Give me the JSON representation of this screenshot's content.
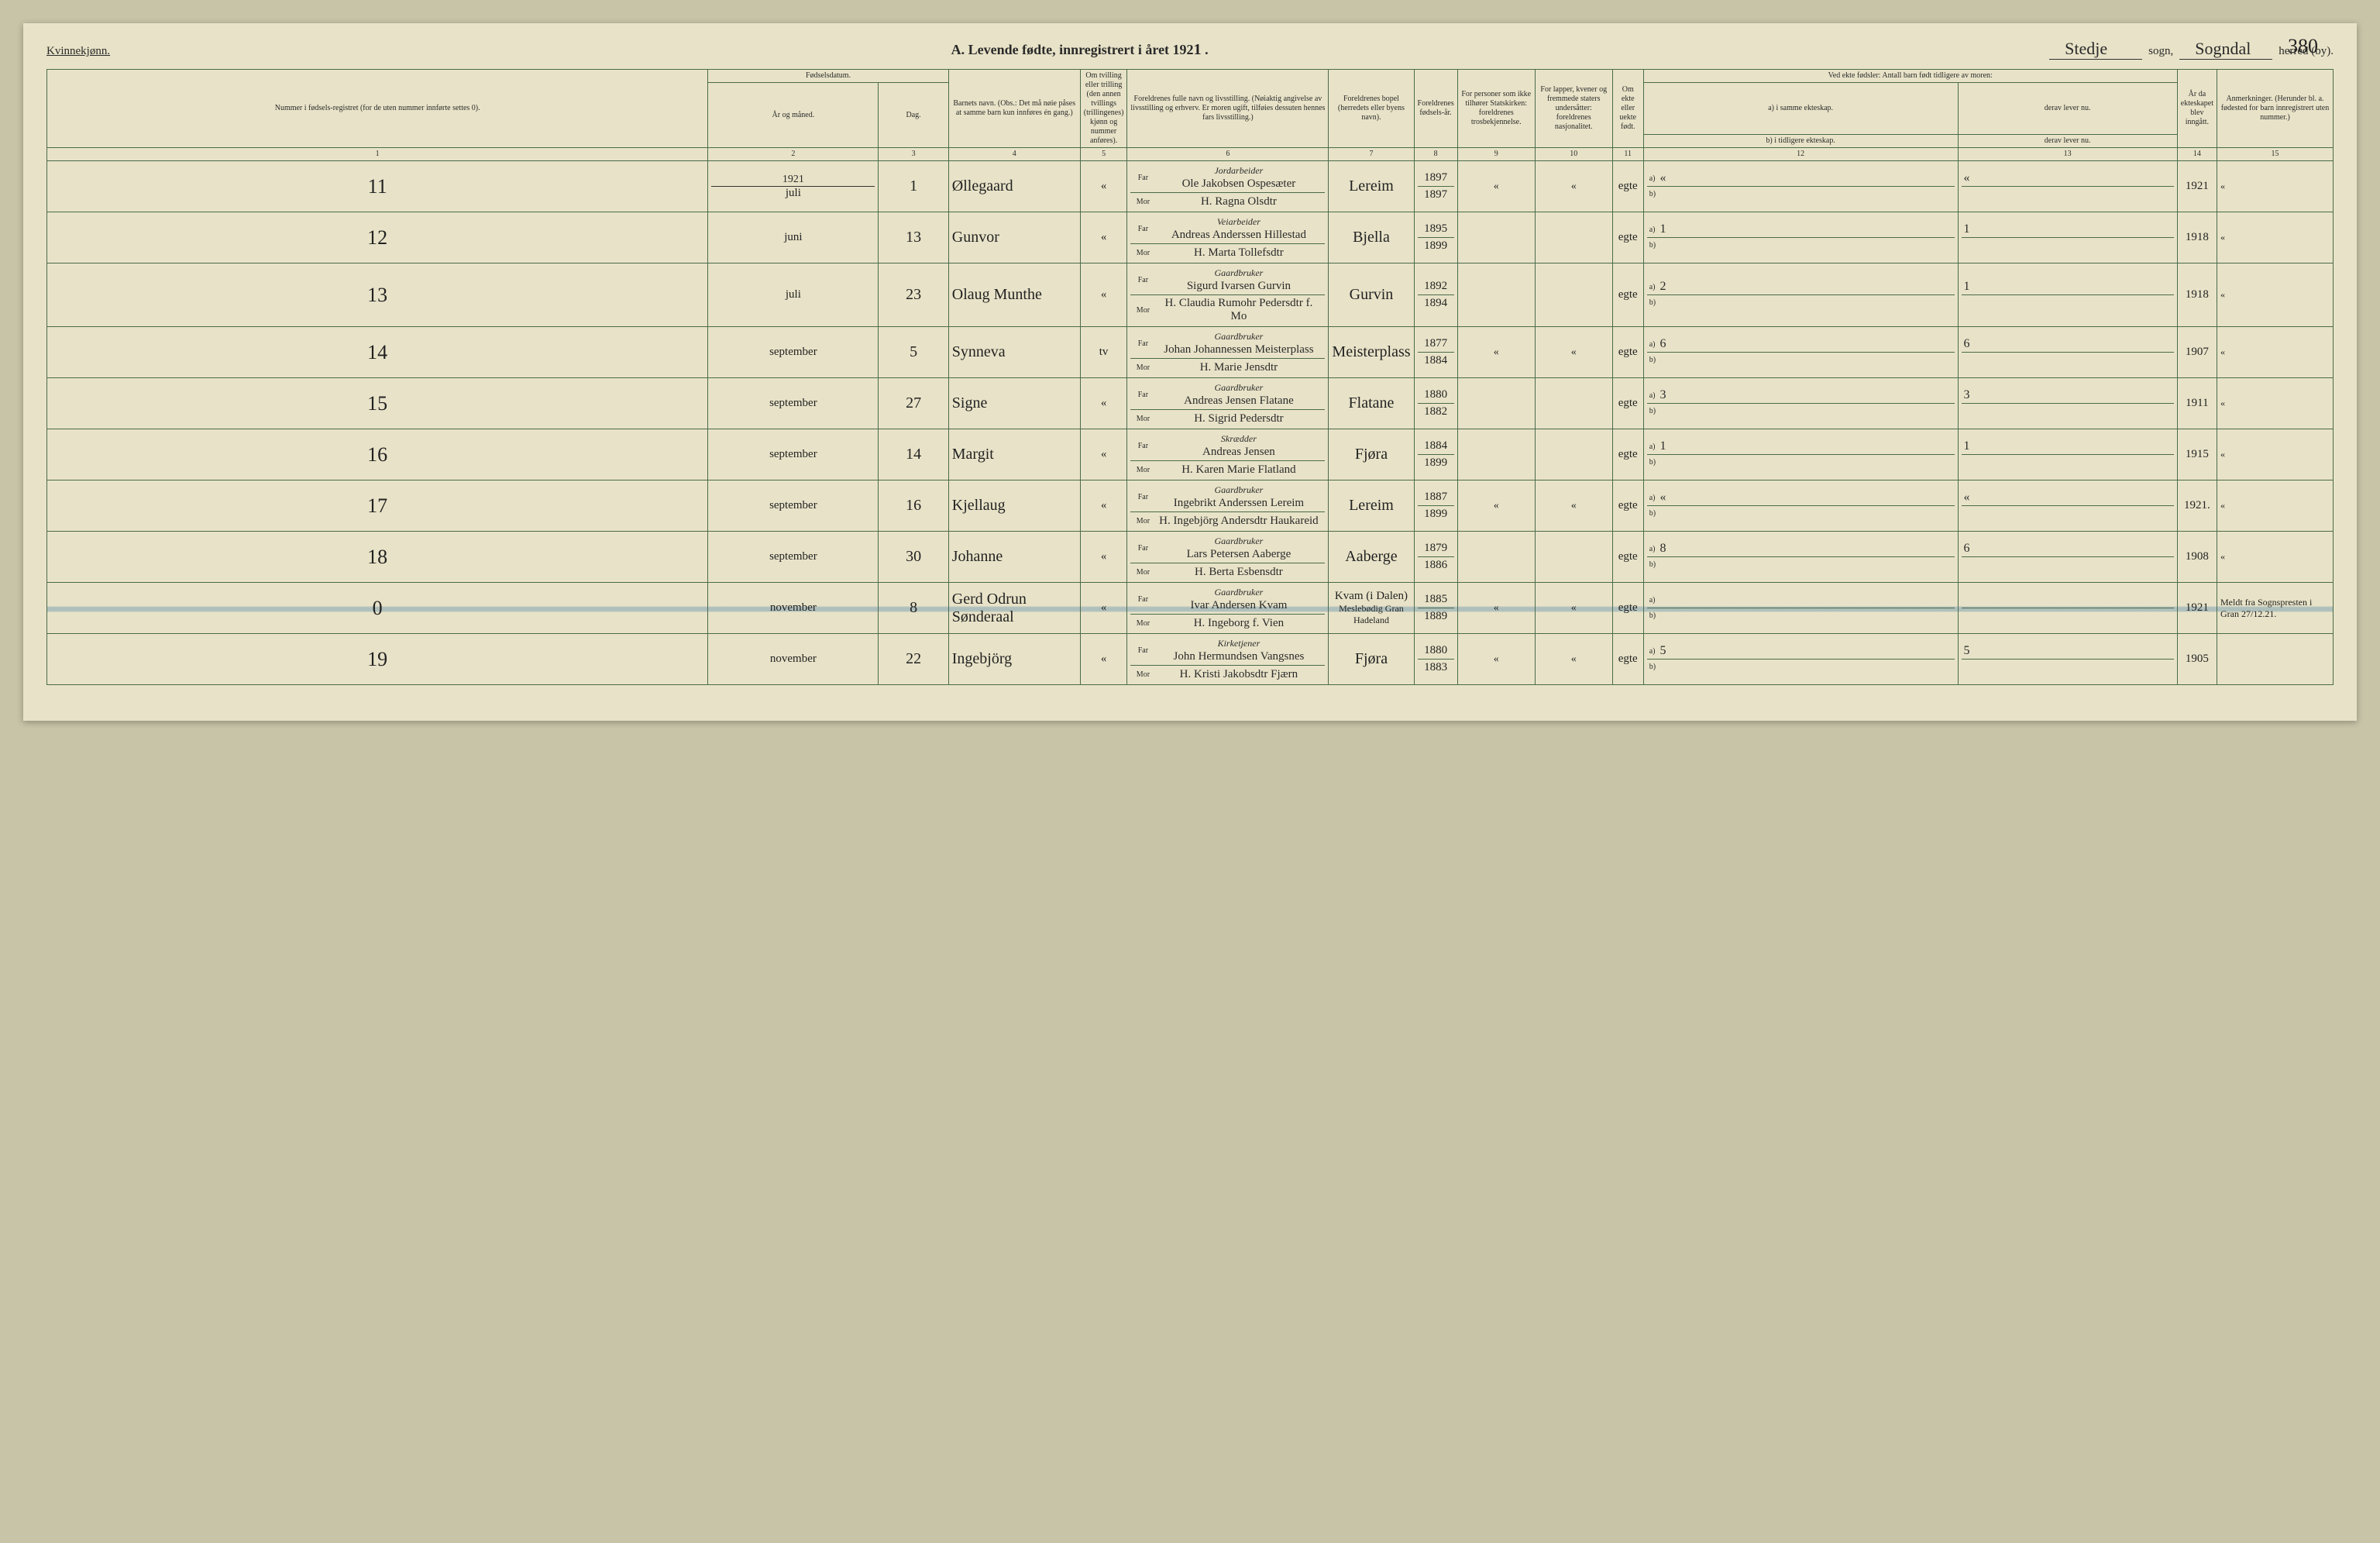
{
  "page_number": "380",
  "header": {
    "gender": "Kvinnekjønn.",
    "title_prefix": "A.  Levende  fødte,  innregistrert  i  året  192",
    "year_suffix": "1",
    "sogn_label": "sogn,",
    "sogn_value": "Stedje",
    "herred_label": "herred (by).",
    "herred_value": "Sogndal"
  },
  "columns": {
    "c1": "Nummer i fødsels-registret (for de uten nummer innførte settes 0).",
    "c2": "Fødselsdatum.",
    "c2a": "År og måned.",
    "c2b": "Dag.",
    "c3": "Barnets navn.\n(Obs.: Det må nøie påses at samme barn kun innføres én gang.)",
    "c4": "Om tvilling eller trilling (den annen tvillings (trillingenes) kjønn og nummer anføres).",
    "c5": "Foreldrenes fulle navn og livsstilling.\n(Nøiaktig angivelse av livsstilling og erhverv. Er moren ugift, tilføies dessuten hennes fars livsstilling.)",
    "c6": "Foreldrenes bopel (herredets eller byens navn).",
    "c7": "Foreldrenes fødsels-år.",
    "c8": "For personer som ikke tilhører Statskirken: foreldrenes trosbekjennelse.",
    "c9": "For lapper, kvener og fremmede staters undersåtter: foreldrenes nasjonalitet.",
    "c10": "Om ekte eller uekte født.",
    "c11": "Ved ekte fødsler: Antall barn født tidligere av moren:",
    "c11a": "a) i samme ekteskap.",
    "c11b": "b) i tidligere ekteskap.",
    "c11c": "derav lever nu.",
    "c11d": "derav lever nu.",
    "c12": "År da ekteskapet blev inngått.",
    "c13": "Anmerkninger.\n(Herunder bl. a. fødested for barn innregistrert uten nummer.)",
    "far": "Far",
    "mor": "Mor"
  },
  "col_nums": [
    "1",
    "2",
    "3",
    "4",
    "5",
    "6",
    "7",
    "8",
    "9",
    "10",
    "11",
    "12",
    "13",
    "14",
    "15"
  ],
  "rows": [
    {
      "num": "11",
      "year": "1921",
      "month": "juli",
      "day": "1",
      "name": "Øllegaard",
      "twin": "«",
      "far_occ": "Jordarbeider",
      "far": "Ole Jakobsen Ospesæter",
      "mor": "H. Ragna Olsdtr",
      "bopel": "Lereim",
      "far_yr": "1897",
      "mor_yr": "1897",
      "tros": "«",
      "nat": "«",
      "ekte": "egte",
      "a_same": "«",
      "a_lever": "«",
      "marriage": "1921",
      "remark": "«"
    },
    {
      "num": "12",
      "month": "juni",
      "day": "13",
      "name": "Gunvor",
      "twin": "«",
      "far_occ": "Veiarbeider",
      "far": "Andreas Anderssen Hillestad",
      "mor": "H. Marta Tollefsdtr",
      "bopel": "Bjella",
      "far_yr": "1895",
      "mor_yr": "1899",
      "tros": "",
      "nat": "",
      "ekte": "egte",
      "a_same": "1",
      "a_lever": "1",
      "marriage": "1918",
      "remark": "«"
    },
    {
      "num": "13",
      "month": "juli",
      "day": "23",
      "name": "Olaug Munthe",
      "twin": "«",
      "far_occ": "Gaardbruker",
      "far": "Sigurd Ivarsen Gurvin",
      "mor": "H. Claudia Rumohr Pedersdtr f. Mo",
      "bopel": "Gurvin",
      "far_yr": "1892",
      "mor_yr": "1894",
      "tros": "",
      "nat": "",
      "ekte": "egte",
      "a_same": "2",
      "a_lever": "1",
      "marriage": "1918",
      "remark": "«"
    },
    {
      "num": "14",
      "month": "september",
      "day": "5",
      "name": "Synneva",
      "twin": "tv",
      "far_occ": "Gaardbruker",
      "far": "Johan Johannessen Meisterplass",
      "mor": "H. Marie Jensdtr",
      "bopel": "Meisterplass",
      "far_yr": "1877",
      "mor_yr": "1884",
      "tros": "«",
      "nat": "«",
      "ekte": "egte",
      "a_same": "6",
      "a_lever": "6",
      "marriage": "1907",
      "remark": "«"
    },
    {
      "num": "15",
      "month": "september",
      "day": "27",
      "name": "Signe",
      "twin": "«",
      "far_occ": "Gaardbruker",
      "far": "Andreas Jensen Flatane",
      "mor": "H. Sigrid Pedersdtr",
      "bopel": "Flatane",
      "far_yr": "1880",
      "mor_yr": "1882",
      "tros": "",
      "nat": "",
      "ekte": "egte",
      "a_same": "3",
      "a_lever": "3",
      "marriage": "1911",
      "remark": "«"
    },
    {
      "num": "16",
      "month": "september",
      "day": "14",
      "name": "Margit",
      "twin": "«",
      "far_occ": "Skrædder",
      "far": "Andreas Jensen",
      "mor": "H. Karen Marie Flatland",
      "bopel": "Fjøra",
      "far_yr": "1884",
      "mor_yr": "1899",
      "tros": "",
      "nat": "",
      "ekte": "egte",
      "a_same": "1",
      "a_lever": "1",
      "marriage": "1915",
      "remark": "«"
    },
    {
      "num": "17",
      "month": "september",
      "day": "16",
      "name": "Kjellaug",
      "twin": "«",
      "far_occ": "Gaardbruker",
      "far": "Ingebrikt Anderssen Lereim",
      "mor": "H. Ingebjörg Andersdtr Haukareid",
      "bopel": "Lereim",
      "far_yr": "1887",
      "mor_yr": "1899",
      "tros": "«",
      "nat": "«",
      "ekte": "egte",
      "a_same": "«",
      "a_lever": "«",
      "marriage": "1921.",
      "remark": "«"
    },
    {
      "num": "18",
      "month": "september",
      "day": "30",
      "name": "Johanne",
      "twin": "«",
      "far_occ": "Gaardbruker",
      "far": "Lars Petersen Aaberge",
      "mor": "H. Berta Esbensdtr",
      "bopel": "Aaberge",
      "far_yr": "1879",
      "mor_yr": "1886",
      "tros": "",
      "nat": "",
      "ekte": "egte",
      "a_same": "8",
      "a_lever": "6",
      "marriage": "1908",
      "remark": "«"
    },
    {
      "num": "0",
      "month": "november",
      "day": "8",
      "name": "Gerd Odrun Sønderaal",
      "twin": "«",
      "far_occ": "Gaardbruker",
      "far": "Ivar Andersen Kvam",
      "mor": "H. Ingeborg f. Vien",
      "bopel": "Kvam (i Dalen)",
      "bopel2": "Meslebødig Gran Hadeland",
      "far_yr": "1885",
      "mor_yr": "1889",
      "tros": "«",
      "nat": "«",
      "ekte": "egte",
      "a_same": "",
      "a_lever": "",
      "marriage": "1921",
      "remark": "Meldt fra Sognspresten i Gran 27/12.21.",
      "struck": true
    },
    {
      "num": "19",
      "month": "november",
      "day": "22",
      "name": "Ingebjörg",
      "twin": "«",
      "far_occ": "Kirketjener",
      "far": "John Hermundsen Vangsnes",
      "mor": "H. Kristi Jakobsdtr Fjærn",
      "bopel": "Fjøra",
      "far_yr": "1880",
      "mor_yr": "1883",
      "tros": "«",
      "nat": "«",
      "ekte": "egte",
      "a_same": "5",
      "a_lever": "5",
      "marriage": "1905",
      "remark": ""
    }
  ],
  "style": {
    "paper_bg": "#e8e3c8",
    "border_color": "#4a6a4a",
    "ink": "#222222",
    "strike_color": "#5a8aaa"
  }
}
